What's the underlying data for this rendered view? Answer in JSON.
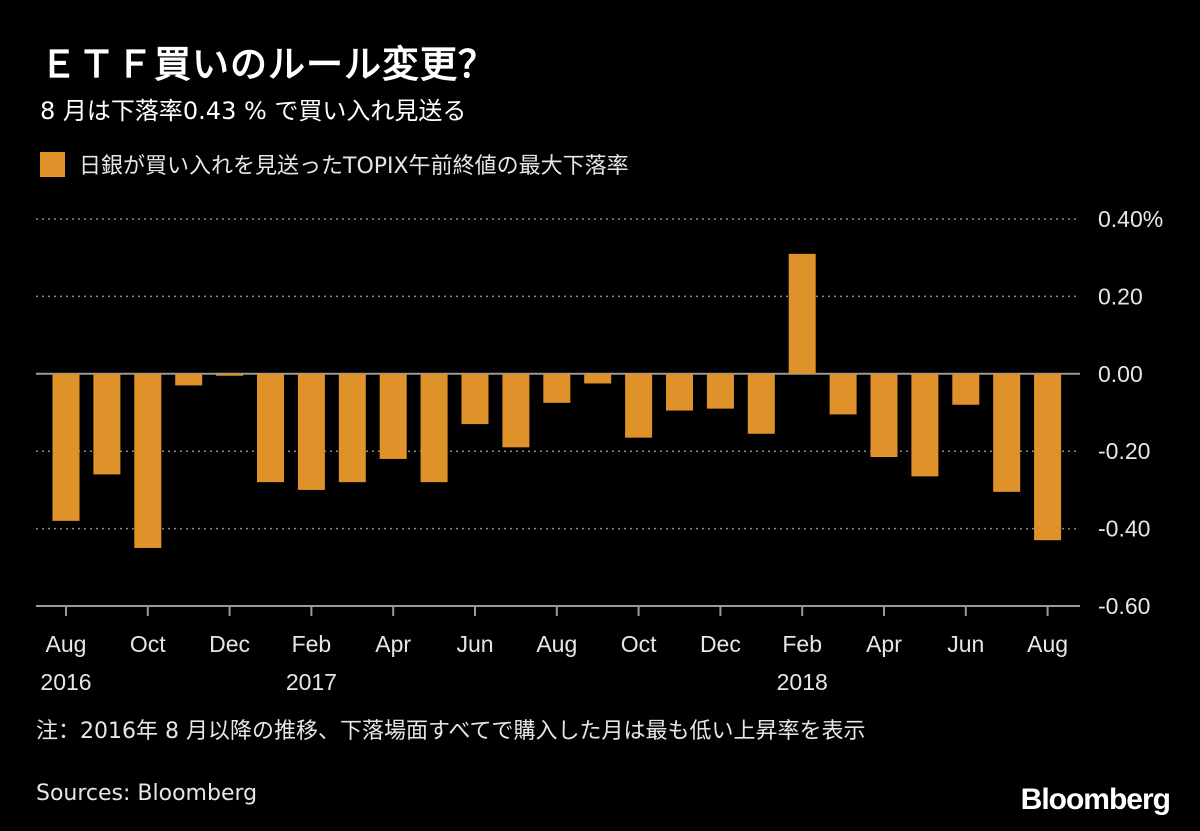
{
  "header": {
    "title": "ＥＴＦ買いのルール変更？",
    "subtitle": "8 月は下落率0.43 % で買い入れ見送る"
  },
  "legend": {
    "label": "日銀が買い入れを見送ったTOPIX午前終値の最大下落率"
  },
  "footer": {
    "note": "注：2016年 8 月以降の推移、下落場面すべてで購入した月は最も低い上昇率を表示",
    "source": "Sources: Bloomberg",
    "logo": "Bloomberg"
  },
  "colors": {
    "background": "#000000",
    "bar": "#e0922a",
    "grid": "#8c8c8c",
    "axis": "#9a9a9a",
    "text": "#e6e6e6"
  },
  "chart_data": {
    "type": "bar",
    "categories": [
      "2016-08",
      "2016-09",
      "2016-10",
      "2016-11",
      "2016-12",
      "2017-01",
      "2017-02",
      "2017-03",
      "2017-04",
      "2017-05",
      "2017-06",
      "2017-07",
      "2017-08",
      "2017-09",
      "2017-10",
      "2017-11",
      "2017-12",
      "2018-01",
      "2018-02",
      "2018-03",
      "2018-04",
      "2018-05",
      "2018-06",
      "2018-07",
      "2018-08"
    ],
    "values": [
      -0.38,
      -0.26,
      -0.45,
      -0.03,
      -0.005,
      -0.28,
      -0.3,
      -0.28,
      -0.22,
      -0.28,
      -0.13,
      -0.19,
      -0.075,
      -0.025,
      -0.165,
      -0.095,
      -0.09,
      -0.155,
      0.31,
      -0.105,
      -0.215,
      -0.265,
      -0.08,
      -0.305,
      -0.43
    ],
    "ylim": [
      -0.6,
      0.4
    ],
    "y_ticks": [
      {
        "value": 0.4,
        "label": "0.40%"
      },
      {
        "value": 0.2,
        "label": "0.20"
      },
      {
        "value": 0.0,
        "label": "0.00"
      },
      {
        "value": -0.2,
        "label": "-0.20"
      },
      {
        "value": -0.4,
        "label": "-0.40"
      },
      {
        "value": -0.6,
        "label": "-0.60"
      }
    ],
    "x_tick_labels": [
      {
        "index": 0,
        "month": "Aug",
        "year": "2016"
      },
      {
        "index": 2,
        "month": "Oct",
        "year": ""
      },
      {
        "index": 4,
        "month": "Dec",
        "year": ""
      },
      {
        "index": 6,
        "month": "Feb",
        "year": "2017"
      },
      {
        "index": 8,
        "month": "Apr",
        "year": ""
      },
      {
        "index": 10,
        "month": "Jun",
        "year": ""
      },
      {
        "index": 12,
        "month": "Aug",
        "year": ""
      },
      {
        "index": 14,
        "month": "Oct",
        "year": ""
      },
      {
        "index": 16,
        "month": "Dec",
        "year": ""
      },
      {
        "index": 18,
        "month": "Feb",
        "year": "2018"
      },
      {
        "index": 20,
        "month": "Apr",
        "year": ""
      },
      {
        "index": 22,
        "month": "Jun",
        "year": ""
      },
      {
        "index": 24,
        "month": "Aug",
        "year": ""
      }
    ],
    "grid": true,
    "legend_position": "top-left"
  }
}
